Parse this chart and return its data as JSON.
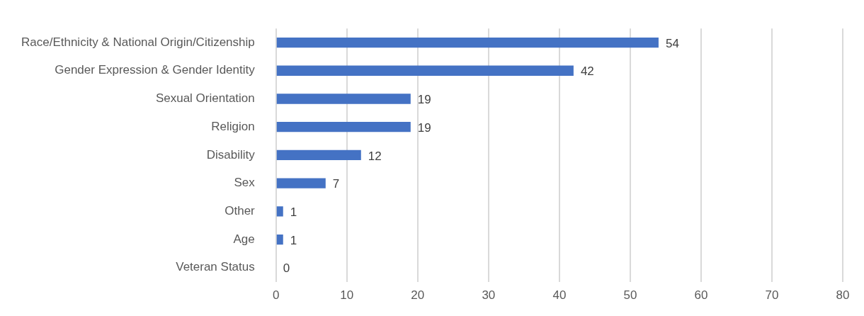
{
  "chart_data": {
    "type": "bar",
    "orientation": "horizontal",
    "categories": [
      "Race/Ethnicity & National Origin/Citizenship",
      "Gender Expression & Gender Identity",
      "Sexual Orientation",
      "Religion",
      "Disability",
      "Sex",
      "Other",
      "Age",
      "Veteran Status"
    ],
    "values": [
      54,
      42,
      19,
      19,
      12,
      7,
      1,
      1,
      0
    ],
    "color": "#4472c4",
    "xlim": [
      0,
      80
    ],
    "xticks": [
      0,
      10,
      20,
      30,
      40,
      50,
      60,
      70,
      80
    ],
    "grid": "x",
    "data_labels": true,
    "legend": false
  }
}
